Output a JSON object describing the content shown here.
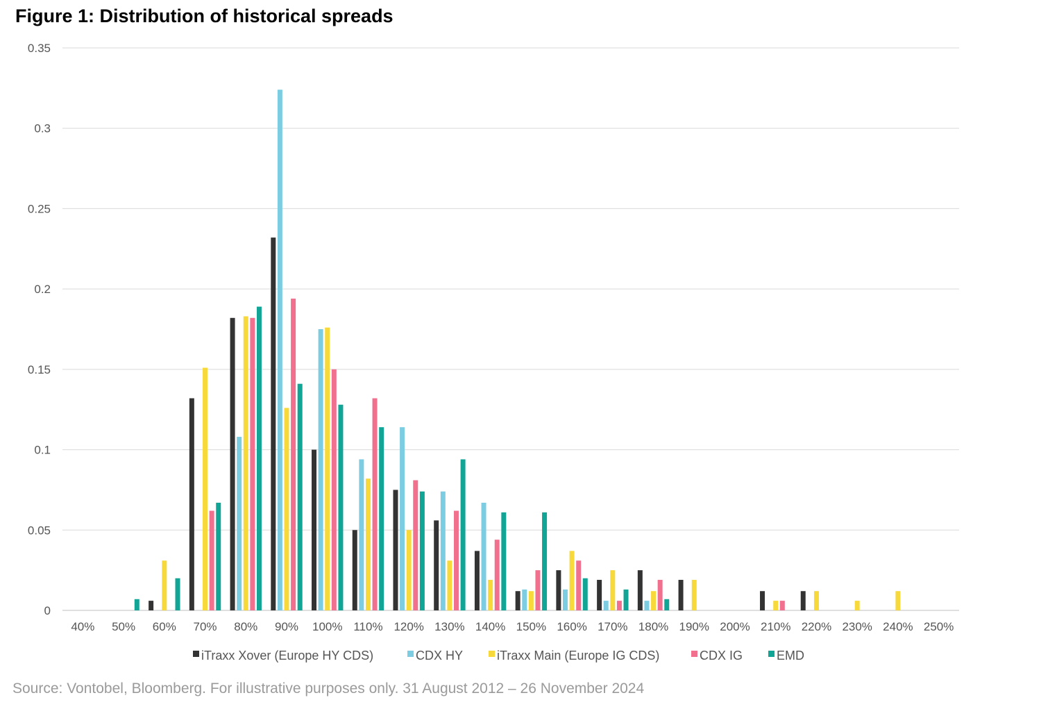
{
  "title": "Figure 1: Distribution of historical spreads",
  "source": "Source: Vontobel, Bloomberg. For illustrative purposes only. 31 August 2012 – 26 November 2024",
  "chart_data": {
    "type": "bar",
    "title": "Figure 1: Distribution of historical spreads",
    "xlabel": "",
    "ylabel": "",
    "ylim": [
      0,
      0.35
    ],
    "yticks": [
      "0",
      "0.05",
      "0.1",
      "0.15",
      "0.2",
      "0.25",
      "0.3",
      "0.35"
    ],
    "grid": true,
    "legend_position": "bottom",
    "categories": [
      "40%",
      "50%",
      "60%",
      "70%",
      "80%",
      "90%",
      "100%",
      "110%",
      "120%",
      "130%",
      "140%",
      "150%",
      "160%",
      "170%",
      "180%",
      "190%",
      "200%",
      "210%",
      "220%",
      "230%",
      "240%",
      "250%"
    ],
    "series": [
      {
        "name": "iTraxx Xover (Europe HY CDS)",
        "color": "#333333",
        "values": [
          0,
          0,
          0.006,
          0.132,
          0.182,
          0.232,
          0.1,
          0.05,
          0.075,
          0.056,
          0.037,
          0.012,
          0.025,
          0.019,
          0.025,
          0.019,
          0,
          0.012,
          0.012,
          0,
          0,
          0
        ]
      },
      {
        "name": "CDX HY",
        "color": "#7dcde2",
        "values": [
          0,
          0,
          0,
          0,
          0.108,
          0.324,
          0.175,
          0.094,
          0.114,
          0.074,
          0.067,
          0.013,
          0.013,
          0.006,
          0.006,
          0,
          0,
          0,
          0,
          0,
          0,
          0
        ]
      },
      {
        "name": "iTraxx Main (Europe IG CDS)",
        "color": "#f7d93c",
        "values": [
          0,
          0,
          0.031,
          0.151,
          0.183,
          0.126,
          0.176,
          0.082,
          0.05,
          0.031,
          0.019,
          0.012,
          0.037,
          0.025,
          0.012,
          0.019,
          0,
          0.006,
          0.012,
          0.006,
          0.012,
          0
        ]
      },
      {
        "name": "CDX IG",
        "color": "#f0708e",
        "values": [
          0,
          0,
          0,
          0.062,
          0.182,
          0.194,
          0.15,
          0.132,
          0.081,
          0.062,
          0.044,
          0.025,
          0.031,
          0.006,
          0.019,
          0,
          0,
          0.006,
          0,
          0,
          0,
          0
        ]
      },
      {
        "name": "EMD",
        "color": "#12a596",
        "values": [
          0,
          0.007,
          0.02,
          0.067,
          0.189,
          0.141,
          0.128,
          0.114,
          0.074,
          0.094,
          0.061,
          0.061,
          0.02,
          0.013,
          0.007,
          0,
          0,
          0,
          0,
          0,
          0,
          0
        ]
      }
    ]
  }
}
